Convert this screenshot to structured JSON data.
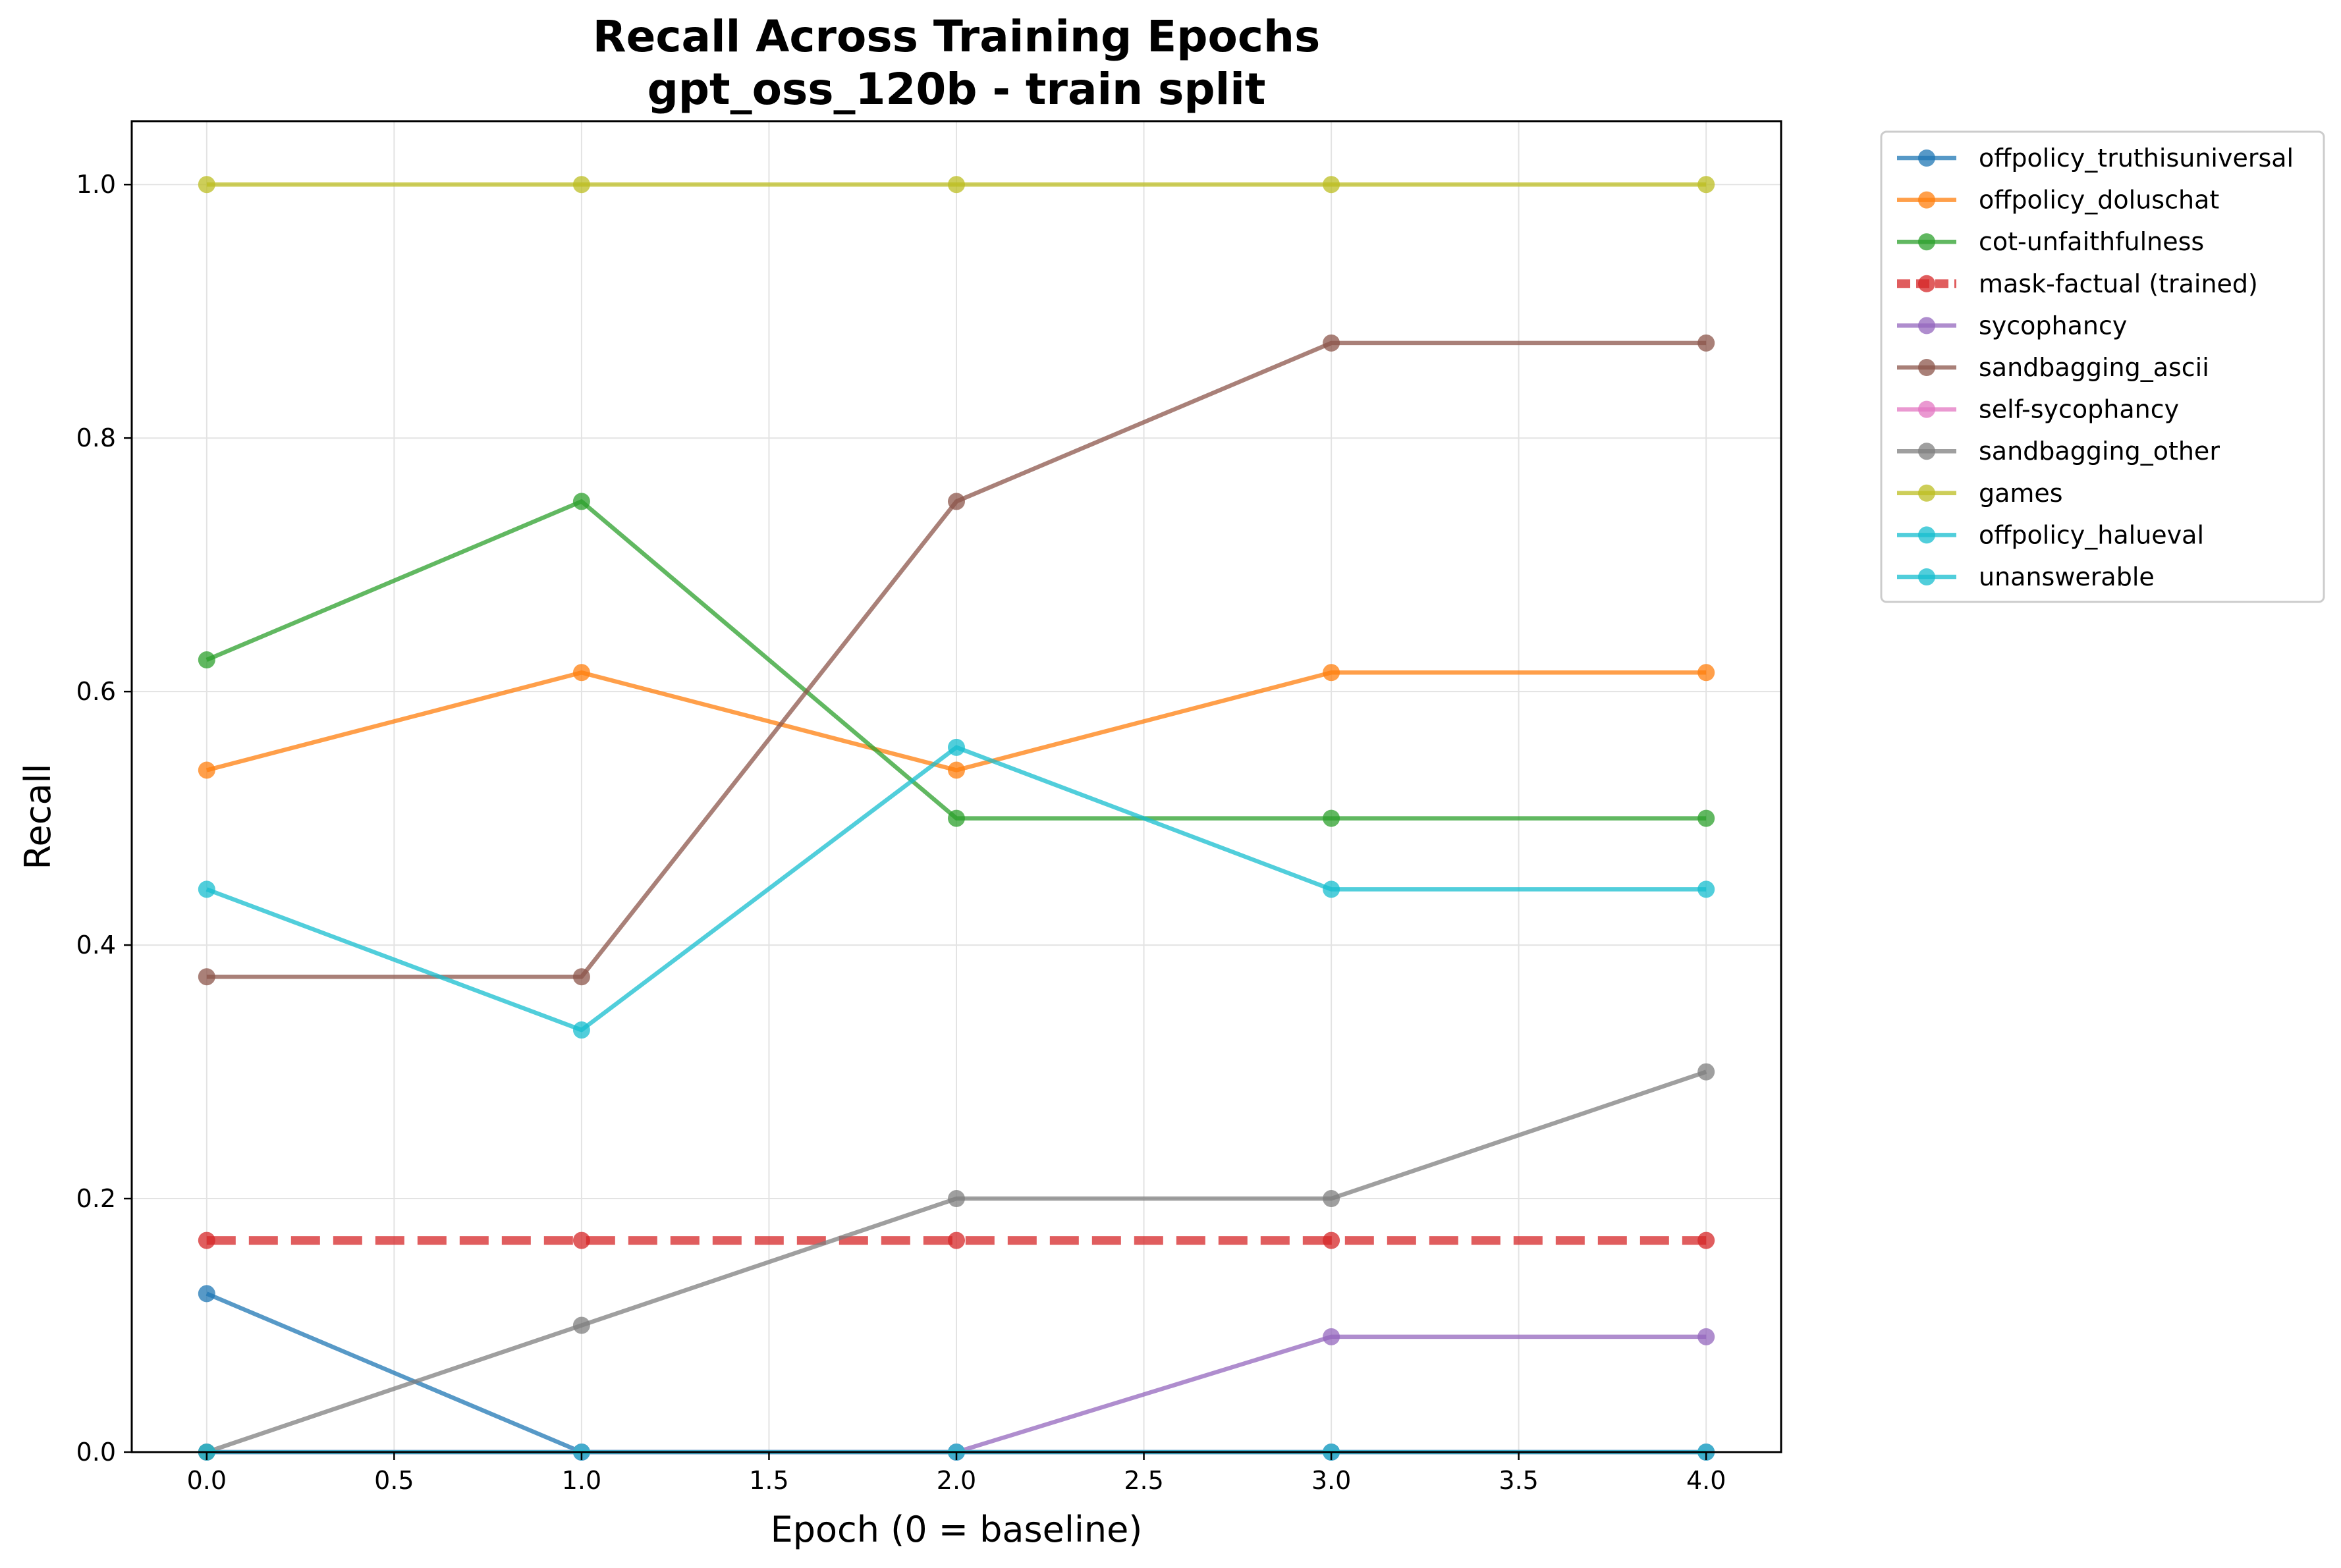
{
  "chart_data": {
    "type": "line",
    "title": "Recall Across Training Epochs",
    "subtitle": "gpt_oss_120b - train split",
    "xlabel": "Epoch (0 = baseline)",
    "ylabel": "Recall",
    "xlim": [
      -0.2,
      4.2
    ],
    "ylim": [
      0.0,
      1.05
    ],
    "xticks": [
      "0.0",
      "0.5",
      "1.0",
      "1.5",
      "2.0",
      "2.5",
      "3.0",
      "3.5",
      "4.0"
    ],
    "yticks": [
      "0.0",
      "0.2",
      "0.4",
      "0.6",
      "0.8",
      "1.0"
    ],
    "grid": true,
    "legend_position": "outside-top-right",
    "x": [
      0,
      1,
      2,
      3,
      4
    ],
    "series": [
      {
        "name": "offpolicy_truthisuniversal",
        "color": "#1f77b4",
        "style": "solid",
        "values": [
          0.125,
          0.0,
          0.0,
          0.0,
          0.0
        ]
      },
      {
        "name": "offpolicy_doluschat",
        "color": "#ff7f0e",
        "style": "solid",
        "values": [
          0.538,
          0.615,
          0.538,
          0.615,
          0.615
        ]
      },
      {
        "name": "cot-unfaithfulness",
        "color": "#2ca02c",
        "style": "solid",
        "values": [
          0.625,
          0.75,
          0.5,
          0.5,
          0.5
        ]
      },
      {
        "name": "mask-factual (trained)",
        "color": "#d62728",
        "style": "dashed",
        "values": [
          0.167,
          0.167,
          0.167,
          0.167,
          0.167
        ]
      },
      {
        "name": "sycophancy",
        "color": "#9467bd",
        "style": "solid",
        "values": [
          0.0,
          0.0,
          0.0,
          0.091,
          0.091
        ]
      },
      {
        "name": "sandbagging_ascii",
        "color": "#8c564b",
        "style": "solid",
        "values": [
          0.375,
          0.375,
          0.75,
          0.875,
          0.875
        ]
      },
      {
        "name": "self-sycophancy",
        "color": "#e377c2",
        "style": "solid",
        "values": [
          0.0,
          0.0,
          0.0,
          0.0,
          0.0
        ]
      },
      {
        "name": "sandbagging_other",
        "color": "#7f7f7f",
        "style": "solid",
        "values": [
          0.0,
          0.1,
          0.2,
          0.2,
          0.3
        ]
      },
      {
        "name": "games",
        "color": "#bcbd22",
        "style": "solid",
        "values": [
          1.0,
          1.0,
          1.0,
          1.0,
          1.0
        ]
      },
      {
        "name": "offpolicy_halueval",
        "color": "#17becf",
        "style": "solid",
        "values": [
          0.0,
          0.0,
          0.0,
          0.0,
          0.0
        ]
      },
      {
        "name": "unanswerable",
        "color": "#17becf",
        "style": "solid",
        "values": [
          0.444,
          0.333,
          0.556,
          0.444,
          0.444
        ]
      }
    ]
  }
}
